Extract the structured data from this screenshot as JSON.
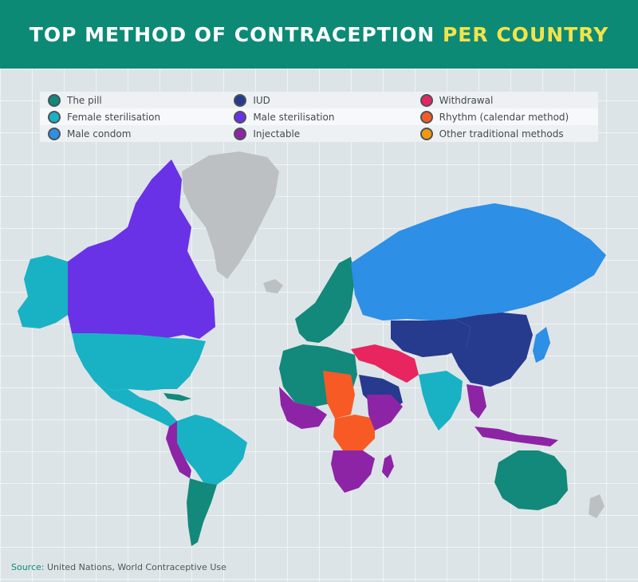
{
  "header": {
    "title_main": "TOP METHOD OF CONTRACEPTION",
    "title_accent": "PER COUNTRY"
  },
  "colors": {
    "pill": "#12897a",
    "iud": "#263a8e",
    "withdrawal": "#e8255f",
    "female_sterilisation": "#19b2c4",
    "male_sterilisation": "#6a32e6",
    "rhythm": "#f85a25",
    "male_condom": "#2d8fe6",
    "injectable": "#8d24a6",
    "other_traditional": "#f5960f",
    "no_data": "#bcc0c3"
  },
  "legend": [
    {
      "label": "The pill",
      "color": "#12897a"
    },
    {
      "label": "IUD",
      "color": "#263a8e"
    },
    {
      "label": "Withdrawal",
      "color": "#e8255f"
    },
    {
      "label": "Female sterilisation",
      "color": "#19b2c4"
    },
    {
      "label": "Male sterilisation",
      "color": "#6a32e6"
    },
    {
      "label": "Rhythm (calendar method)",
      "color": "#f85a25"
    },
    {
      "label": "Male condom",
      "color": "#2d8fe6"
    },
    {
      "label": "Injectable",
      "color": "#8d24a6"
    },
    {
      "label": "Other traditional methods",
      "color": "#f5960f"
    }
  ],
  "source": {
    "label": "Source:",
    "text": "United Nations, World Contraceptive Use"
  }
}
